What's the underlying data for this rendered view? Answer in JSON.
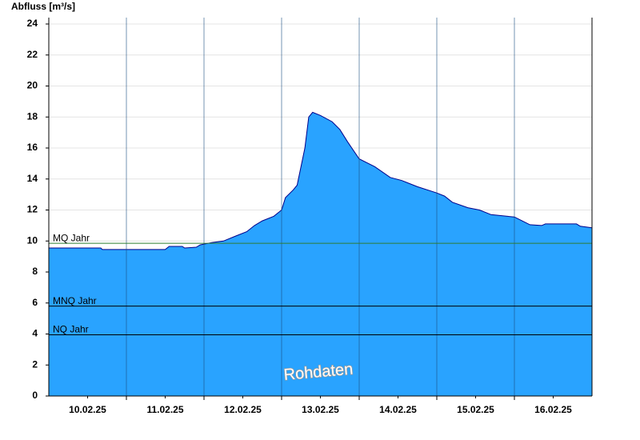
{
  "chart_data": {
    "type": "area",
    "y_label": "Abfluss [m³/s]",
    "watermark": "Rohdaten",
    "x": [
      0,
      0.67,
      0.69,
      1.5,
      1.55,
      1.72,
      1.75,
      1.9,
      1.95,
      2.0,
      2.1,
      2.25,
      2.4,
      2.55,
      2.65,
      2.75,
      2.9,
      3.0,
      3.05,
      3.15,
      3.2,
      3.3,
      3.35,
      3.4,
      3.5,
      3.65,
      3.75,
      3.85,
      4.0,
      4.2,
      4.4,
      4.55,
      4.75,
      5.0,
      5.1,
      5.2,
      5.4,
      5.55,
      5.7,
      5.9,
      6.0,
      6.1,
      6.2,
      6.35,
      6.4,
      6.8,
      6.85,
      7.0
    ],
    "values": [
      9.55,
      9.55,
      9.45,
      9.45,
      9.65,
      9.65,
      9.55,
      9.6,
      9.75,
      9.8,
      9.9,
      10.0,
      10.3,
      10.6,
      11.0,
      11.3,
      11.6,
      12.0,
      12.8,
      13.3,
      13.6,
      16.0,
      18.0,
      18.3,
      18.1,
      17.7,
      17.2,
      16.4,
      15.3,
      14.8,
      14.1,
      13.9,
      13.5,
      13.1,
      12.9,
      12.5,
      12.15,
      12.0,
      11.7,
      11.6,
      11.55,
      11.3,
      11.05,
      11.0,
      11.1,
      11.1,
      10.95,
      10.85
    ],
    "color": "#29a3ff",
    "line_color": "#00008b",
    "xlim": [
      0,
      7
    ],
    "xticks": [
      {
        "value": 0.5,
        "label": "10.02.25"
      },
      {
        "value": 1.5,
        "label": "11.02.25"
      },
      {
        "value": 2.5,
        "label": "12.02.25"
      },
      {
        "value": 3.5,
        "label": "13.02.25"
      },
      {
        "value": 4.5,
        "label": "14.02.25"
      },
      {
        "value": 5.5,
        "label": "15.02.25"
      },
      {
        "value": 6.5,
        "label": "16.02.25"
      }
    ],
    "x_gridlines": [
      1,
      2,
      3,
      4,
      5,
      6
    ],
    "ylim": [
      0,
      24
    ],
    "yticks": [
      0,
      2,
      4,
      6,
      8,
      10,
      12,
      14,
      16,
      18,
      20,
      22,
      24
    ],
    "grid": true,
    "reference_lines": [
      {
        "label": "MQ Jahr",
        "value": 9.85,
        "color": "#2e7d32"
      },
      {
        "label": "MNQ Jahr",
        "value": 5.8,
        "color": "#000000"
      },
      {
        "label": "NQ Jahr",
        "value": 3.95,
        "color": "#000000"
      }
    ]
  }
}
